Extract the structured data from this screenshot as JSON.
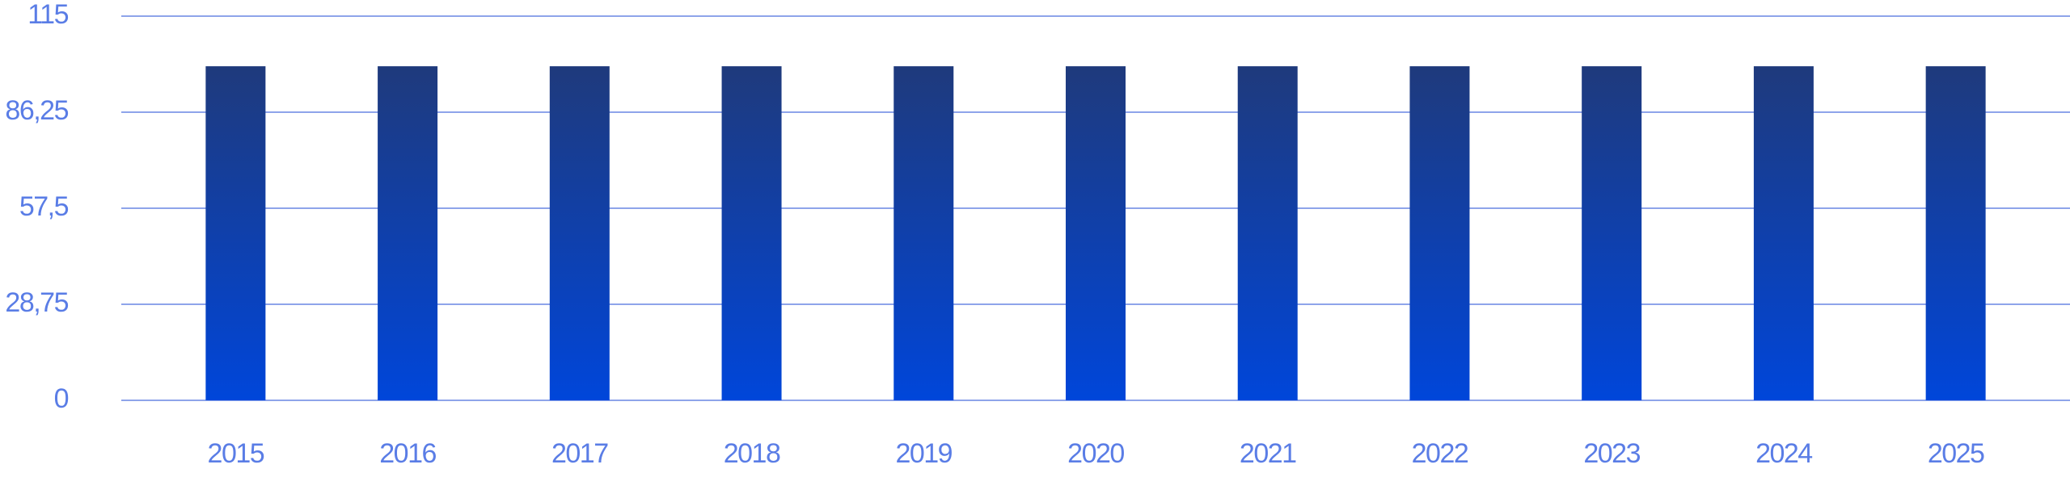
{
  "chart_data": {
    "type": "bar",
    "categories": [
      "2015",
      "2016",
      "2017",
      "2018",
      "2019",
      "2020",
      "2021",
      "2022",
      "2023",
      "2024",
      "2025"
    ],
    "values": [
      100,
      100,
      100,
      100,
      100,
      100,
      100,
      100,
      100,
      100,
      100
    ],
    "ylim": [
      0,
      115
    ],
    "yticks": [
      0,
      {
        "value": 28.75,
        "label": "28,75"
      },
      {
        "value": 57.5,
        "label": "57,5"
      },
      {
        "value": 86.25,
        "label": "86,25"
      },
      115
    ],
    "grid": true
  }
}
